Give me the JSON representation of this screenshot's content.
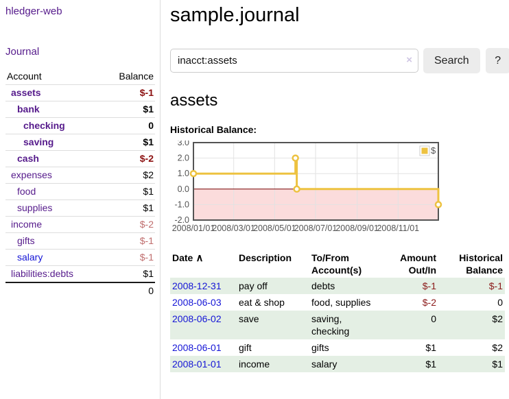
{
  "app": {
    "title": "hledger-web",
    "nav_journal": "Journal"
  },
  "sidebar": {
    "header": {
      "account": "Account",
      "balance": "Balance"
    },
    "accounts": [
      {
        "name": "assets",
        "indent": 1,
        "bold": true,
        "link": "purple",
        "balance": "$-1",
        "balance_style": "neg-bold"
      },
      {
        "name": "bank",
        "indent": 2,
        "bold": true,
        "link": "purple",
        "balance": "$1",
        "balance_style": "pos-bold"
      },
      {
        "name": "checking",
        "indent": 3,
        "bold": true,
        "link": "purple",
        "balance": "0",
        "balance_style": "pos-bold"
      },
      {
        "name": "saving",
        "indent": 3,
        "bold": true,
        "link": "purple",
        "balance": "$1",
        "balance_style": "pos-bold"
      },
      {
        "name": "cash",
        "indent": 2,
        "bold": true,
        "link": "purple",
        "balance": "$-2",
        "balance_style": "neg-bold"
      },
      {
        "name": "expenses",
        "indent": 1,
        "bold": false,
        "link": "purple",
        "balance": "$2",
        "balance_style": "pos"
      },
      {
        "name": "food",
        "indent": 2,
        "bold": false,
        "link": "purple",
        "balance": "$1",
        "balance_style": "pos"
      },
      {
        "name": "supplies",
        "indent": 2,
        "bold": false,
        "link": "purple",
        "balance": "$1",
        "balance_style": "pos"
      },
      {
        "name": "income",
        "indent": 1,
        "bold": false,
        "link": "purple",
        "balance": "$-2",
        "balance_style": "neg-light"
      },
      {
        "name": "gifts",
        "indent": 2,
        "bold": false,
        "link": "purple",
        "balance": "$-1",
        "balance_style": "neg-light"
      },
      {
        "name": "salary",
        "indent": 2,
        "bold": false,
        "link": "blue",
        "balance": "$-1",
        "balance_style": "neg-light"
      },
      {
        "name": "liabilities:debts",
        "indent": 1,
        "bold": false,
        "link": "purple",
        "balance": "$1",
        "balance_style": "pos"
      }
    ],
    "total": "0"
  },
  "header": {
    "title": "sample.journal"
  },
  "search": {
    "value": "inacct:assets",
    "clear_icon": "×",
    "button_label": "Search",
    "help_label": "?"
  },
  "account_page": {
    "heading": "assets",
    "chart_label": "Historical Balance:"
  },
  "chart_data": {
    "type": "line",
    "step": true,
    "title": "Historical Balance",
    "series": [
      {
        "name": "$",
        "points": [
          [
            "2008-01-01",
            1
          ],
          [
            "2008-06-01",
            2
          ],
          [
            "2008-06-03",
            0
          ],
          [
            "2008-12-31",
            -1
          ]
        ]
      }
    ],
    "x_range": [
      "2008-01-01",
      "2008-12-31"
    ],
    "x_ticks": [
      {
        "v": "2008-01-01",
        "label": "2008/01/01"
      },
      {
        "v": "2008-03-01",
        "label": "2008/03/01"
      },
      {
        "v": "2008-05-01",
        "label": "2008/05/01"
      },
      {
        "v": "2008-07-01",
        "label": "2008/07/01"
      },
      {
        "v": "2008-09-01",
        "label": "2008/09/01"
      },
      {
        "v": "2008-11-01",
        "label": "2008/11/01"
      }
    ],
    "y_ticks": [
      {
        "v": 3,
        "label": "3.0"
      },
      {
        "v": 2,
        "label": "2.0"
      },
      {
        "v": 1,
        "label": "1.0"
      },
      {
        "v": 0,
        "label": "0.0"
      },
      {
        "v": -1,
        "label": "-1.0"
      },
      {
        "v": -2,
        "label": "-2.0"
      }
    ],
    "ylim": [
      -2,
      3
    ],
    "grid": true,
    "legend": {
      "label": "$",
      "position": "top-right"
    },
    "colors": {
      "series": "#edc240",
      "marker_fill": "#ffffff",
      "negative_region": "#fbdcdc",
      "zero_line": "#7a0000",
      "grid": "#e2e2e2",
      "border": "#545454",
      "tick_text": "#545454",
      "legend_box_border": "#cccccc"
    }
  },
  "register": {
    "columns": [
      {
        "lines": [
          "Date"
        ],
        "align": "left",
        "sortable": true
      },
      {
        "lines": [
          "Description"
        ],
        "align": "left",
        "sortable": false
      },
      {
        "lines": [
          "To/From",
          "Account(s)"
        ],
        "align": "left",
        "sortable": false
      },
      {
        "lines": [
          "Amount",
          "Out/In"
        ],
        "align": "right",
        "sortable": false
      },
      {
        "lines": [
          "Historical",
          "Balance"
        ],
        "align": "right",
        "sortable": false
      }
    ],
    "sort_indicator": "∧",
    "rows": [
      {
        "date": "2008-12-31",
        "description": "pay off",
        "accounts": "debts",
        "amount": "$-1",
        "amount_neg": true,
        "balance": "$-1",
        "balance_neg": true,
        "shaded": true
      },
      {
        "date": "2008-06-03",
        "description": "eat & shop",
        "accounts": "food, supplies",
        "amount": "$-2",
        "amount_neg": true,
        "balance": "0",
        "balance_neg": false,
        "shaded": false
      },
      {
        "date": "2008-06-02",
        "description": "save",
        "accounts": "saving, checking",
        "amount": "0",
        "amount_neg": false,
        "balance": "$2",
        "balance_neg": false,
        "shaded": true
      },
      {
        "date": "2008-06-01",
        "description": "gift",
        "accounts": "gifts",
        "amount": "$1",
        "amount_neg": false,
        "balance": "$2",
        "balance_neg": false,
        "shaded": false
      },
      {
        "date": "2008-01-01",
        "description": "income",
        "accounts": "salary",
        "amount": "$1",
        "amount_neg": false,
        "balance": "$1",
        "balance_neg": false,
        "shaded": true
      }
    ]
  }
}
